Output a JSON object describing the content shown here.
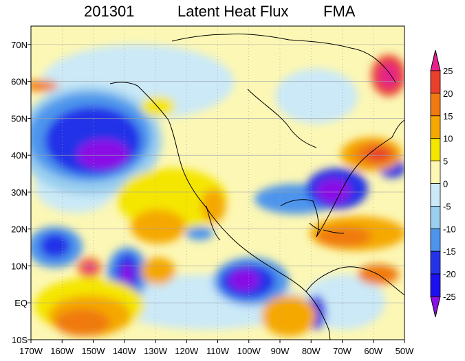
{
  "title": {
    "date": "201301",
    "variable": "Latent Heat Flux",
    "season": "FMA"
  },
  "map": {
    "region": "North Pacific / North America",
    "lon_range": [
      -170,
      -50
    ],
    "lat_range": [
      -10,
      75
    ],
    "lon_ticks": [
      "170W",
      "160W",
      "150W",
      "140W",
      "130W",
      "120W",
      "110W",
      "100W",
      "90W",
      "80W",
      "70W",
      "60W",
      "50W"
    ],
    "lat_ticks": [
      "10S",
      "EQ",
      "10N",
      "20N",
      "30N",
      "40N",
      "50N",
      "60N",
      "70N"
    ],
    "grid": true
  },
  "colorbar": {
    "labels": [
      "25",
      "20",
      "15",
      "10",
      "5",
      "0",
      "-5",
      "-10",
      "-15",
      "-20",
      "-25"
    ],
    "colors": [
      "#e6208c",
      "#e8402a",
      "#f07a10",
      "#f5a800",
      "#f5e600",
      "#fcf7b4",
      "#cbe9f7",
      "#9acff0",
      "#4d95ec",
      "#2333e8",
      "#1a10f0",
      "#8a10e6"
    ]
  }
}
